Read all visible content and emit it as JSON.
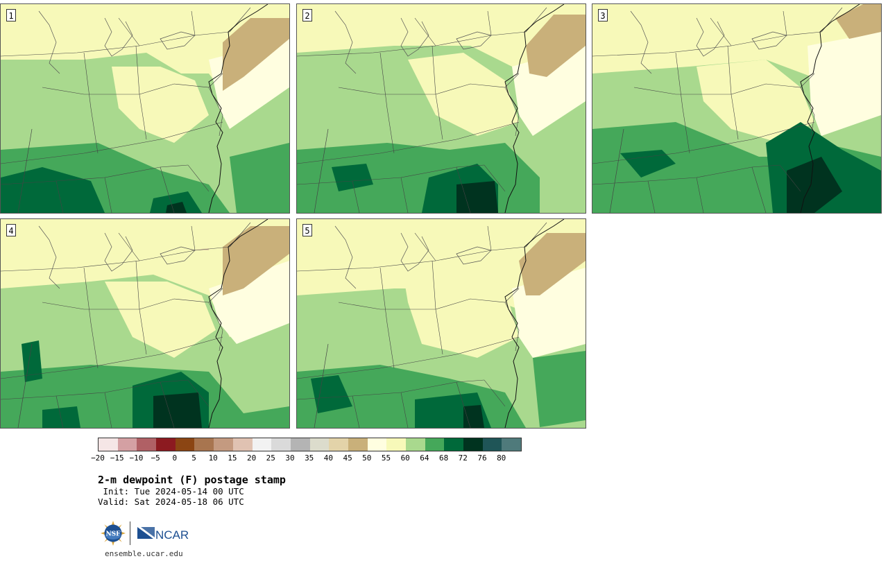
{
  "figure": {
    "title": "2-m dewpoint (F) postage stamp",
    "init_label": " Init: Tue 2024-05-14 00 UTC",
    "valid_label": "Valid: Sat 2024-05-18 06 UTC",
    "site": "ensemble.ucar.edu",
    "logos": {
      "nsf": {
        "icon": "nsf-logo-icon",
        "text": "NSF"
      },
      "ncar": {
        "icon": "ncar-logo-icon",
        "text": "NCAR"
      }
    }
  },
  "members": [
    {
      "label": "1"
    },
    {
      "label": "2"
    },
    {
      "label": "3"
    },
    {
      "label": "4"
    },
    {
      "label": "5"
    }
  ],
  "colorbar": {
    "unit": "F",
    "tick_labels": [
      "−20",
      "−15",
      "−10",
      "−5",
      "0",
      "5",
      "10",
      "15",
      "20",
      "25",
      "30",
      "35",
      "40",
      "45",
      "50",
      "55",
      "60",
      "64",
      "68",
      "72",
      "76",
      "80"
    ],
    "colors": [
      "#f5e6e6",
      "#d4a0a3",
      "#b06065",
      "#8c1a20",
      "#8b4513",
      "#a8754f",
      "#c49a80",
      "#e0c2b2",
      "#f2f2f2",
      "#dadada",
      "#b4b4b4",
      "#dcdccc",
      "#e3d3a9",
      "#c9b07a",
      "#fffee0",
      "#f7f9b9",
      "#a9d98e",
      "#45a85a",
      "#00693a",
      "#00331f",
      "#1f5557",
      "#4f7a7b"
    ],
    "map_palette": {
      "dry": "#c9b07a",
      "dry_light": "#e3d3a9",
      "cream": "#fffee0",
      "pale_yellow": "#f7f9b9",
      "light_green": "#a9d98e",
      "medium_green": "#45a85a",
      "dark_green": "#00693a",
      "darkest_green": "#00331f"
    }
  }
}
